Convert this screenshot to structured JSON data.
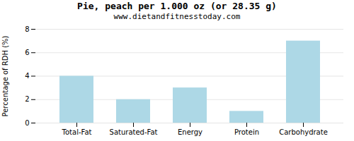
{
  "chart_data": {
    "type": "bar",
    "title": "Pie, peach per 1.000 oz (or 28.35 g)",
    "subtitle": "www.dietandfitnesstoday.com",
    "categories": [
      "Total-Fat",
      "Saturated-Fat",
      "Energy",
      "Protein",
      "Carbohydrate"
    ],
    "values": [
      4.0,
      2.0,
      3.0,
      1.0,
      7.0
    ],
    "color": "#add8e6",
    "ylabel": "Percentage of RDH (%)",
    "ylim": [
      0,
      8
    ],
    "yticks": [
      0,
      2,
      4,
      6,
      8
    ],
    "grid": true
  }
}
